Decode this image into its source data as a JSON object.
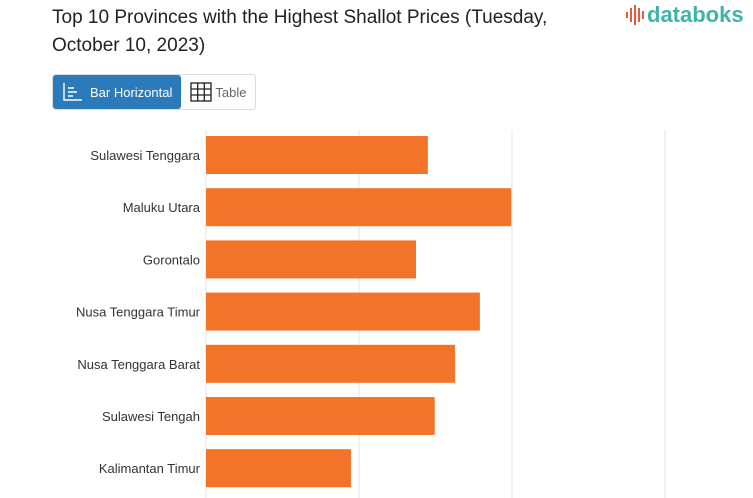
{
  "title": "Top 10 Provinces with the Highest Shallot Prices (Tuesday, October 10, 2023)",
  "logo": "databoks",
  "view_toggle": {
    "bar_label": "Bar Horizontal",
    "table_label": "Table",
    "active": "Bar Horizontal"
  },
  "colors": {
    "bar": "#f37328",
    "active": "#2b7bba"
  },
  "chart_data": {
    "type": "bar",
    "orientation": "horizontal",
    "title": "Top 10 Provinces with the Highest Shallot Prices (Tuesday, October 10, 2023)",
    "categories": [
      "Sulawesi Tenggara",
      "Maluku Utara",
      "Gorontalo",
      "Nusa Tenggara Timur",
      "Nusa Tenggara Barat",
      "Sulawesi Tengah",
      "Kalimantan Timur"
    ],
    "values": [
      29000,
      39900,
      27450,
      35800,
      32550,
      29900,
      18950
    ],
    "xlim": [
      0,
      60000
    ],
    "grid": true,
    "xlabel": "",
    "ylabel": ""
  }
}
